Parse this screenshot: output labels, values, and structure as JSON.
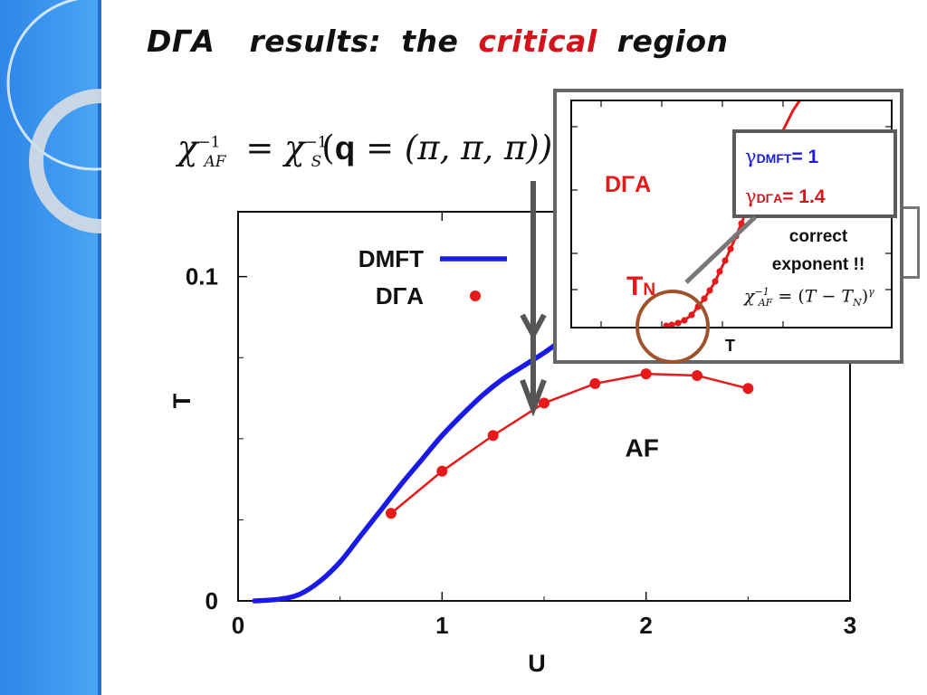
{
  "title": {
    "head": "DΓA",
    "word1": "results:",
    "word2": "the",
    "accent": "critical",
    "word3": "region"
  },
  "formula_main": {
    "lhs": "χ",
    "lhs_sub": "AF",
    "exp": "−1",
    "eq": "=",
    "rhs": "χ",
    "rhs_sub": "S",
    "q": "q",
    "arg": "= (π, π, π))"
  },
  "inset": {
    "dga_label": "DΓA",
    "tn_label": "T",
    "tn_sub": "N",
    "t_axis_label": "T",
    "gamma_dmft": {
      "symbol": "γ",
      "sub": "DMFT",
      "value": "= 1"
    },
    "gamma_dga": {
      "symbol": "γ",
      "sub": "DΓA",
      "value": "=  1.4"
    },
    "note_line1": "correct",
    "note_line2": "exponent !!",
    "formula": {
      "lhs": "χ",
      "lhs_sub": "AF",
      "exp": "−1",
      "eq": "= (",
      "t": "T",
      "minus": " − ",
      "tn": "T",
      "tn_sub": "N",
      "close": ")",
      "gamma": "γ"
    },
    "colors": {
      "frame": "#666666",
      "curve": "#e61a1a",
      "highlight_circle": "#a0522d"
    }
  },
  "chart_data": {
    "type": "line",
    "xlabel": "U",
    "ylabel": "T",
    "xlim": [
      0,
      3
    ],
    "ylim": [
      0,
      0.12
    ],
    "xticks": [
      0,
      1,
      2,
      3
    ],
    "yticks": [
      0,
      0.1
    ],
    "ytick_labels": [
      "0",
      "0.1"
    ],
    "xtick_labels": [
      "0",
      "1",
      "2",
      "3"
    ],
    "grid": false,
    "legend_placement": "top-left",
    "region_label": "AF",
    "series": [
      {
        "name": "DMFT",
        "style": "line",
        "color": "#1a1ae6",
        "x": [
          0.08,
          0.2,
          0.3,
          0.4,
          0.5,
          0.6,
          0.7,
          0.8,
          0.9,
          1.0,
          1.1,
          1.2,
          1.3,
          1.4,
          1.5,
          1.6
        ],
        "y": [
          0.0,
          0.0005,
          0.002,
          0.006,
          0.012,
          0.02,
          0.028,
          0.036,
          0.0435,
          0.051,
          0.0575,
          0.0635,
          0.0685,
          0.0725,
          0.0765,
          0.081
        ]
      },
      {
        "name": "DΓA",
        "style": "points-line",
        "color": "#e61a1a",
        "x": [
          0.75,
          1.0,
          1.25,
          1.5,
          1.75,
          2.0,
          2.25,
          2.5
        ],
        "y": [
          0.027,
          0.04,
          0.051,
          0.061,
          0.067,
          0.07,
          0.0695,
          0.0655
        ]
      }
    ]
  }
}
